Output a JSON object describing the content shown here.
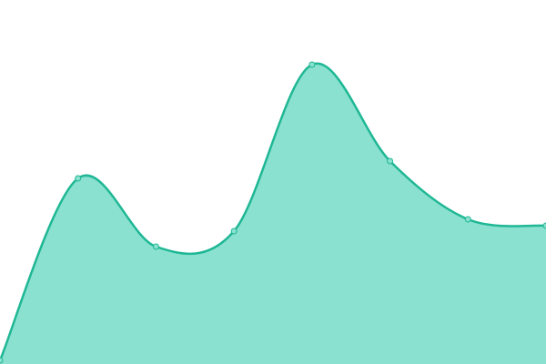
{
  "chart_data": {
    "type": "area",
    "categories": [
      null,
      null,
      null,
      null,
      null,
      null,
      null,
      null
    ],
    "values": [
      4,
      204,
      129,
      146,
      329,
      223,
      159,
      152
    ],
    "ylim": [
      0,
      400
    ],
    "color": "#1fb795",
    "fill_color": "#8ae1cf",
    "smooth": true,
    "markers": true
  }
}
